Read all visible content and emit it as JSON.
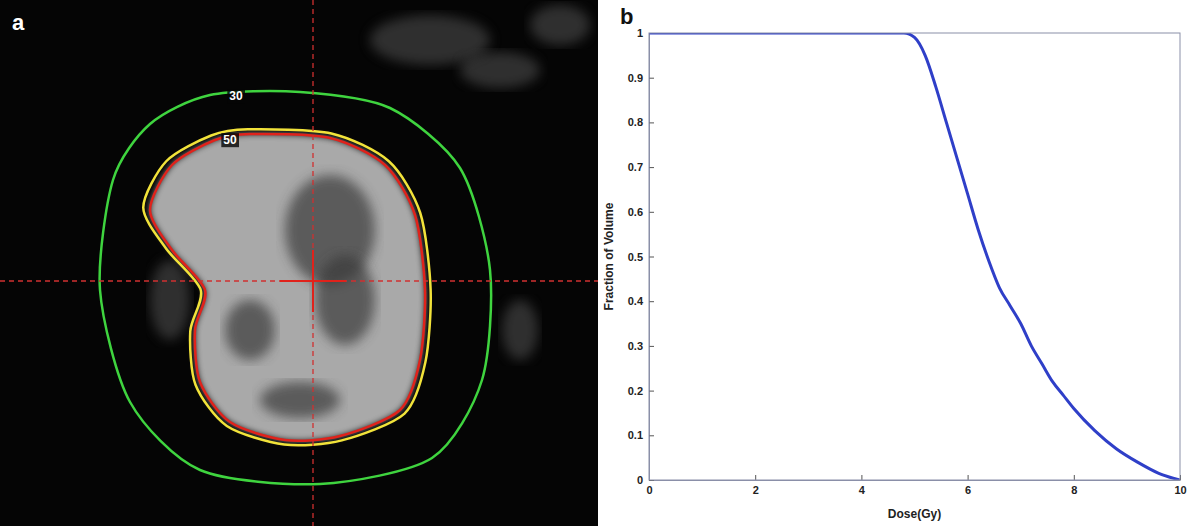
{
  "chart_data": [
    {
      "type": "image",
      "panel_label": "a",
      "isodose_lines": [
        {
          "value": 30,
          "color": "#3fd43f"
        },
        {
          "value": 50,
          "color": "#f2e33a"
        }
      ]
    },
    {
      "type": "line",
      "panel_label": "b",
      "x_label": "Dose(Gy)",
      "y_label": "Fraction of Volume",
      "x": [
        0,
        4.6,
        4.8,
        5.0,
        5.2,
        5.4,
        5.6,
        5.8,
        6.0,
        6.2,
        6.4,
        6.6,
        6.8,
        7.0,
        7.2,
        7.4,
        7.6,
        7.8,
        8.0,
        8.4,
        8.8,
        9.2,
        9.6,
        10
      ],
      "values": [
        1,
        1,
        1,
        0.99,
        0.95,
        0.88,
        0.8,
        0.72,
        0.64,
        0.56,
        0.49,
        0.43,
        0.39,
        0.35,
        0.3,
        0.26,
        0.22,
        0.19,
        0.16,
        0.11,
        0.07,
        0.04,
        0.015,
        0
      ],
      "color": "#2f3fc8",
      "xlim": [
        0,
        10
      ],
      "ylim": [
        0,
        1
      ],
      "xticks": [
        0,
        2,
        4,
        6,
        8,
        10
      ],
      "yticks": [
        0,
        0.1,
        0.2,
        0.3,
        0.4,
        0.5,
        0.6,
        0.7,
        0.8,
        0.9,
        1
      ],
      "grid": false
    }
  ]
}
